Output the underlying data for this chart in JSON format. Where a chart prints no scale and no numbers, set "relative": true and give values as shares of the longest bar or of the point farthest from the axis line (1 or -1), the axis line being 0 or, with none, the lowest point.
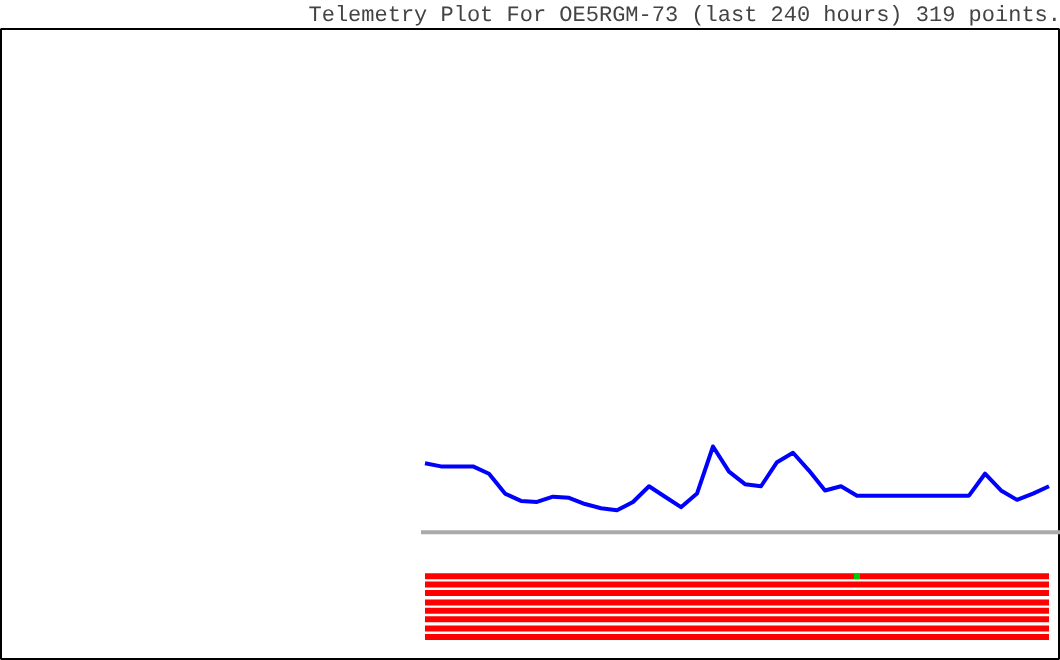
{
  "chart_data": {
    "type": "line",
    "title": "Telemetry Plot For OE5RGM-73 (last 240 hours) 319 points.",
    "relative": true,
    "line_style": "solid",
    "marker": "none",
    "categories": [
      null,
      null,
      null,
      null,
      null,
      null,
      null,
      null,
      null,
      null,
      null,
      null,
      null,
      null,
      null,
      null,
      null,
      null,
      null,
      null,
      null,
      null,
      null,
      null,
      null,
      null,
      null,
      null,
      null,
      null,
      null,
      null,
      null,
      null,
      null,
      null,
      null,
      null,
      null,
      null
    ],
    "series": [
      {
        "color": "#0000ff",
        "values": [
          0.66,
          0.63,
          0.63,
          0.63,
          0.56,
          0.37,
          0.3,
          0.29,
          0.34,
          0.33,
          0.27,
          0.23,
          0.21,
          0.29,
          0.44,
          0.34,
          0.24,
          0.37,
          0.82,
          0.58,
          0.46,
          0.44,
          0.67,
          0.76,
          0.59,
          0.4,
          0.44,
          0.35,
          0.35,
          0.35,
          0.35,
          0.35,
          0.35,
          0.35,
          0.35,
          0.56,
          0.4,
          0.31,
          0.37,
          0.44
        ]
      },
      {
        "color": "#ff0000",
        "values": [
          -0.42,
          -0.42,
          -0.42,
          -0.42,
          -0.42,
          -0.42,
          -0.42,
          -0.42,
          -0.42,
          -0.42,
          -0.42,
          -0.42,
          -0.42,
          -0.42,
          -0.42,
          -0.42,
          -0.42,
          -0.42,
          -0.42,
          -0.42,
          -0.42,
          -0.42,
          -0.42,
          -0.42,
          -0.42,
          -0.42,
          -0.42,
          -0.42,
          -0.42,
          -0.42,
          -0.42,
          -0.42,
          -0.42,
          -0.42,
          -0.42,
          -0.42,
          -0.42,
          -0.42,
          -0.42,
          -0.42
        ]
      },
      {
        "color": "#ff0000",
        "values": [
          -0.5,
          -0.5,
          -0.5,
          -0.5,
          -0.5,
          -0.5,
          -0.5,
          -0.5,
          -0.5,
          -0.5,
          -0.5,
          -0.5,
          -0.5,
          -0.5,
          -0.5,
          -0.5,
          -0.5,
          -0.5,
          -0.5,
          -0.5,
          -0.5,
          -0.5,
          -0.5,
          -0.5,
          -0.5,
          -0.5,
          -0.5,
          -0.5,
          -0.5,
          -0.5,
          -0.5,
          -0.5,
          -0.5,
          -0.5,
          -0.5,
          -0.5,
          -0.5,
          -0.5,
          -0.5,
          -0.5
        ]
      },
      {
        "color": "#ff0000",
        "values": [
          -0.58,
          -0.58,
          -0.58,
          -0.58,
          -0.58,
          -0.58,
          -0.58,
          -0.58,
          -0.58,
          -0.58,
          -0.58,
          -0.58,
          -0.58,
          -0.58,
          -0.58,
          -0.58,
          -0.58,
          -0.58,
          -0.58,
          -0.58,
          -0.58,
          -0.58,
          -0.58,
          -0.58,
          -0.58,
          -0.58,
          -0.58,
          -0.58,
          -0.58,
          -0.58,
          -0.58,
          -0.58,
          -0.58,
          -0.58,
          -0.58,
          -0.58,
          -0.58,
          -0.58,
          -0.58,
          -0.58
        ]
      },
      {
        "color": "#ff0000",
        "values": [
          -0.67,
          -0.67,
          -0.67,
          -0.67,
          -0.67,
          -0.67,
          -0.67,
          -0.67,
          -0.67,
          -0.67,
          -0.67,
          -0.67,
          -0.67,
          -0.67,
          -0.67,
          -0.67,
          -0.67,
          -0.67,
          -0.67,
          -0.67,
          -0.67,
          -0.67,
          -0.67,
          -0.67,
          -0.67,
          -0.67,
          -0.67,
          -0.67,
          -0.67,
          -0.67,
          -0.67,
          -0.67,
          -0.67,
          -0.67,
          -0.67,
          -0.67,
          -0.67,
          -0.67,
          -0.67,
          -0.67
        ]
      },
      {
        "color": "#ff0000",
        "values": [
          -0.75,
          -0.75,
          -0.75,
          -0.75,
          -0.75,
          -0.75,
          -0.75,
          -0.75,
          -0.75,
          -0.75,
          -0.75,
          -0.75,
          -0.75,
          -0.75,
          -0.75,
          -0.75,
          -0.75,
          -0.75,
          -0.75,
          -0.75,
          -0.75,
          -0.75,
          -0.75,
          -0.75,
          -0.75,
          -0.75,
          -0.75,
          -0.75,
          -0.75,
          -0.75,
          -0.75,
          -0.75,
          -0.75,
          -0.75,
          -0.75,
          -0.75,
          -0.75,
          -0.75,
          -0.75,
          -0.75
        ]
      },
      {
        "color": "#ff0000",
        "values": [
          -0.83,
          -0.83,
          -0.83,
          -0.83,
          -0.83,
          -0.83,
          -0.83,
          -0.83,
          -0.83,
          -0.83,
          -0.83,
          -0.83,
          -0.83,
          -0.83,
          -0.83,
          -0.83,
          -0.83,
          -0.83,
          -0.83,
          -0.83,
          -0.83,
          -0.83,
          -0.83,
          -0.83,
          -0.83,
          -0.83,
          -0.83,
          -0.83,
          -0.83,
          -0.83,
          -0.83,
          -0.83,
          -0.83,
          -0.83,
          -0.83,
          -0.83,
          -0.83,
          -0.83,
          -0.83,
          -0.83
        ]
      },
      {
        "color": "#ff0000",
        "values": [
          -0.92,
          -0.92,
          -0.92,
          -0.92,
          -0.92,
          -0.92,
          -0.92,
          -0.92,
          -0.92,
          -0.92,
          -0.92,
          -0.92,
          -0.92,
          -0.92,
          -0.92,
          -0.92,
          -0.92,
          -0.92,
          -0.92,
          -0.92,
          -0.92,
          -0.92,
          -0.92,
          -0.92,
          -0.92,
          -0.92,
          -0.92,
          -0.92,
          -0.92,
          -0.92,
          -0.92,
          -0.92,
          -0.92,
          -0.92,
          -0.92,
          -0.92,
          -0.92,
          -0.92,
          -0.92,
          -0.92
        ]
      },
      {
        "color": "#ff0000",
        "values": [
          -1.0,
          -1.0,
          -1.0,
          -1.0,
          -1.0,
          -1.0,
          -1.0,
          -1.0,
          -1.0,
          -1.0,
          -1.0,
          -1.0,
          -1.0,
          -1.0,
          -1.0,
          -1.0,
          -1.0,
          -1.0,
          -1.0,
          -1.0,
          -1.0,
          -1.0,
          -1.0,
          -1.0,
          -1.0,
          -1.0,
          -1.0,
          -1.0,
          -1.0,
          -1.0,
          -1.0,
          -1.0,
          -1.0,
          -1.0,
          -1.0,
          -1.0,
          -1.0,
          -1.0,
          -1.0,
          -1.0
        ]
      },
      {
        "marker": "square",
        "color": "#00cc00",
        "values": [
          null,
          null,
          null,
          null,
          null,
          null,
          null,
          null,
          null,
          null,
          null,
          null,
          null,
          null,
          null,
          null,
          null,
          null,
          null,
          null,
          null,
          null,
          null,
          null,
          null,
          null,
          null,
          -0.42,
          null,
          null,
          null,
          null,
          null,
          null,
          null,
          null,
          null,
          null,
          null,
          null
        ]
      }
    ]
  }
}
